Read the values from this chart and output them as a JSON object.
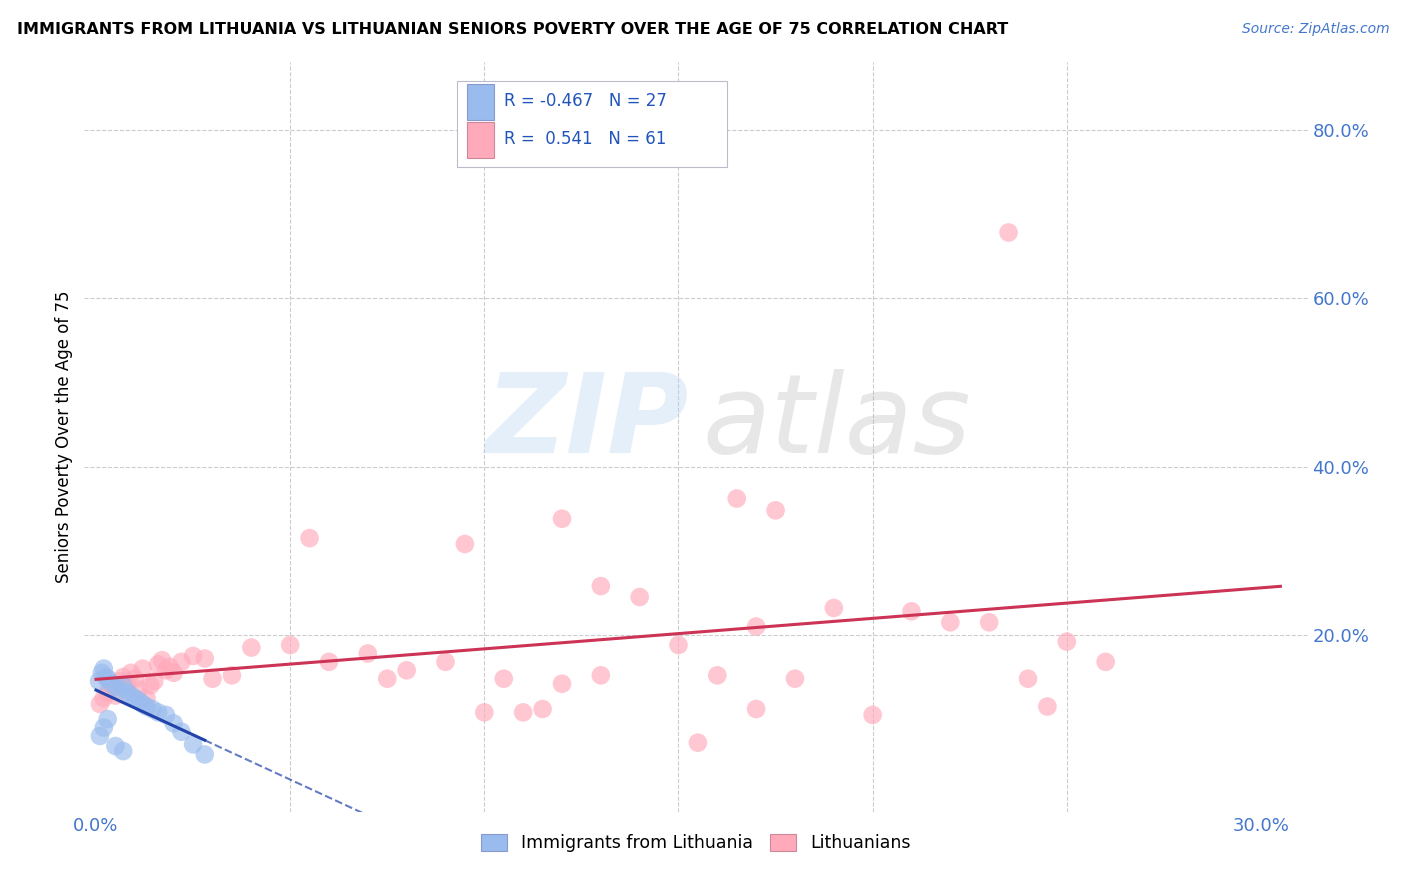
{
  "title": "IMMIGRANTS FROM LITHUANIA VS LITHUANIAN SENIORS POVERTY OVER THE AGE OF 75 CORRELATION CHART",
  "source": "Source: ZipAtlas.com",
  "ylabel_label": "Seniors Poverty Over the Age of 75",
  "xlim": [
    -0.003,
    0.312
  ],
  "ylim": [
    -0.01,
    0.88
  ],
  "legend_blue_label": "Immigrants from Lithuania",
  "legend_pink_label": "Lithuanians",
  "R_blue": -0.467,
  "N_blue": 27,
  "R_pink": 0.541,
  "N_pink": 61,
  "blue_color": "#99bbee",
  "pink_color": "#ffaabb",
  "blue_scatter_ec": "#88aadd",
  "pink_scatter_ec": "#ee8899",
  "blue_line_color": "#2244aa",
  "pink_line_color": "#cc3355",
  "grid_color": "#cccccc",
  "tick_color": "#4477cc",
  "blue_scatter_x": [
    0.0008,
    0.0015,
    0.002,
    0.0025,
    0.003,
    0.004,
    0.005,
    0.006,
    0.007,
    0.008,
    0.009,
    0.01,
    0.011,
    0.012,
    0.013,
    0.0145,
    0.016,
    0.018,
    0.02,
    0.022,
    0.025,
    0.028,
    0.001,
    0.002,
    0.003,
    0.005,
    0.007
  ],
  "blue_scatter_y": [
    0.145,
    0.155,
    0.16,
    0.15,
    0.148,
    0.142,
    0.138,
    0.135,
    0.14,
    0.132,
    0.128,
    0.125,
    0.122,
    0.118,
    0.115,
    0.112,
    0.108,
    0.105,
    0.095,
    0.085,
    0.07,
    0.058,
    0.08,
    0.09,
    0.1,
    0.068,
    0.062
  ],
  "pink_scatter_x": [
    0.001,
    0.002,
    0.003,
    0.004,
    0.005,
    0.006,
    0.007,
    0.008,
    0.009,
    0.01,
    0.011,
    0.012,
    0.013,
    0.014,
    0.015,
    0.016,
    0.017,
    0.018,
    0.019,
    0.02,
    0.022,
    0.025,
    0.028,
    0.03,
    0.035,
    0.04,
    0.05,
    0.06,
    0.07,
    0.08,
    0.09,
    0.1,
    0.11,
    0.12,
    0.13,
    0.14,
    0.15,
    0.16,
    0.165,
    0.17,
    0.175,
    0.18,
    0.19,
    0.2,
    0.21,
    0.22,
    0.23,
    0.24,
    0.25,
    0.26,
    0.12,
    0.13,
    0.055,
    0.075,
    0.095,
    0.105,
    0.115,
    0.155,
    0.17,
    0.235,
    0.245
  ],
  "pink_scatter_y": [
    0.118,
    0.125,
    0.132,
    0.138,
    0.128,
    0.145,
    0.15,
    0.14,
    0.155,
    0.148,
    0.135,
    0.16,
    0.125,
    0.14,
    0.145,
    0.165,
    0.17,
    0.158,
    0.162,
    0.155,
    0.168,
    0.175,
    0.172,
    0.148,
    0.152,
    0.185,
    0.188,
    0.168,
    0.178,
    0.158,
    0.168,
    0.108,
    0.108,
    0.142,
    0.258,
    0.245,
    0.188,
    0.152,
    0.362,
    0.21,
    0.348,
    0.148,
    0.232,
    0.105,
    0.228,
    0.215,
    0.215,
    0.148,
    0.192,
    0.168,
    0.338,
    0.152,
    0.315,
    0.148,
    0.308,
    0.148,
    0.112,
    0.072,
    0.112,
    0.678,
    0.115
  ]
}
